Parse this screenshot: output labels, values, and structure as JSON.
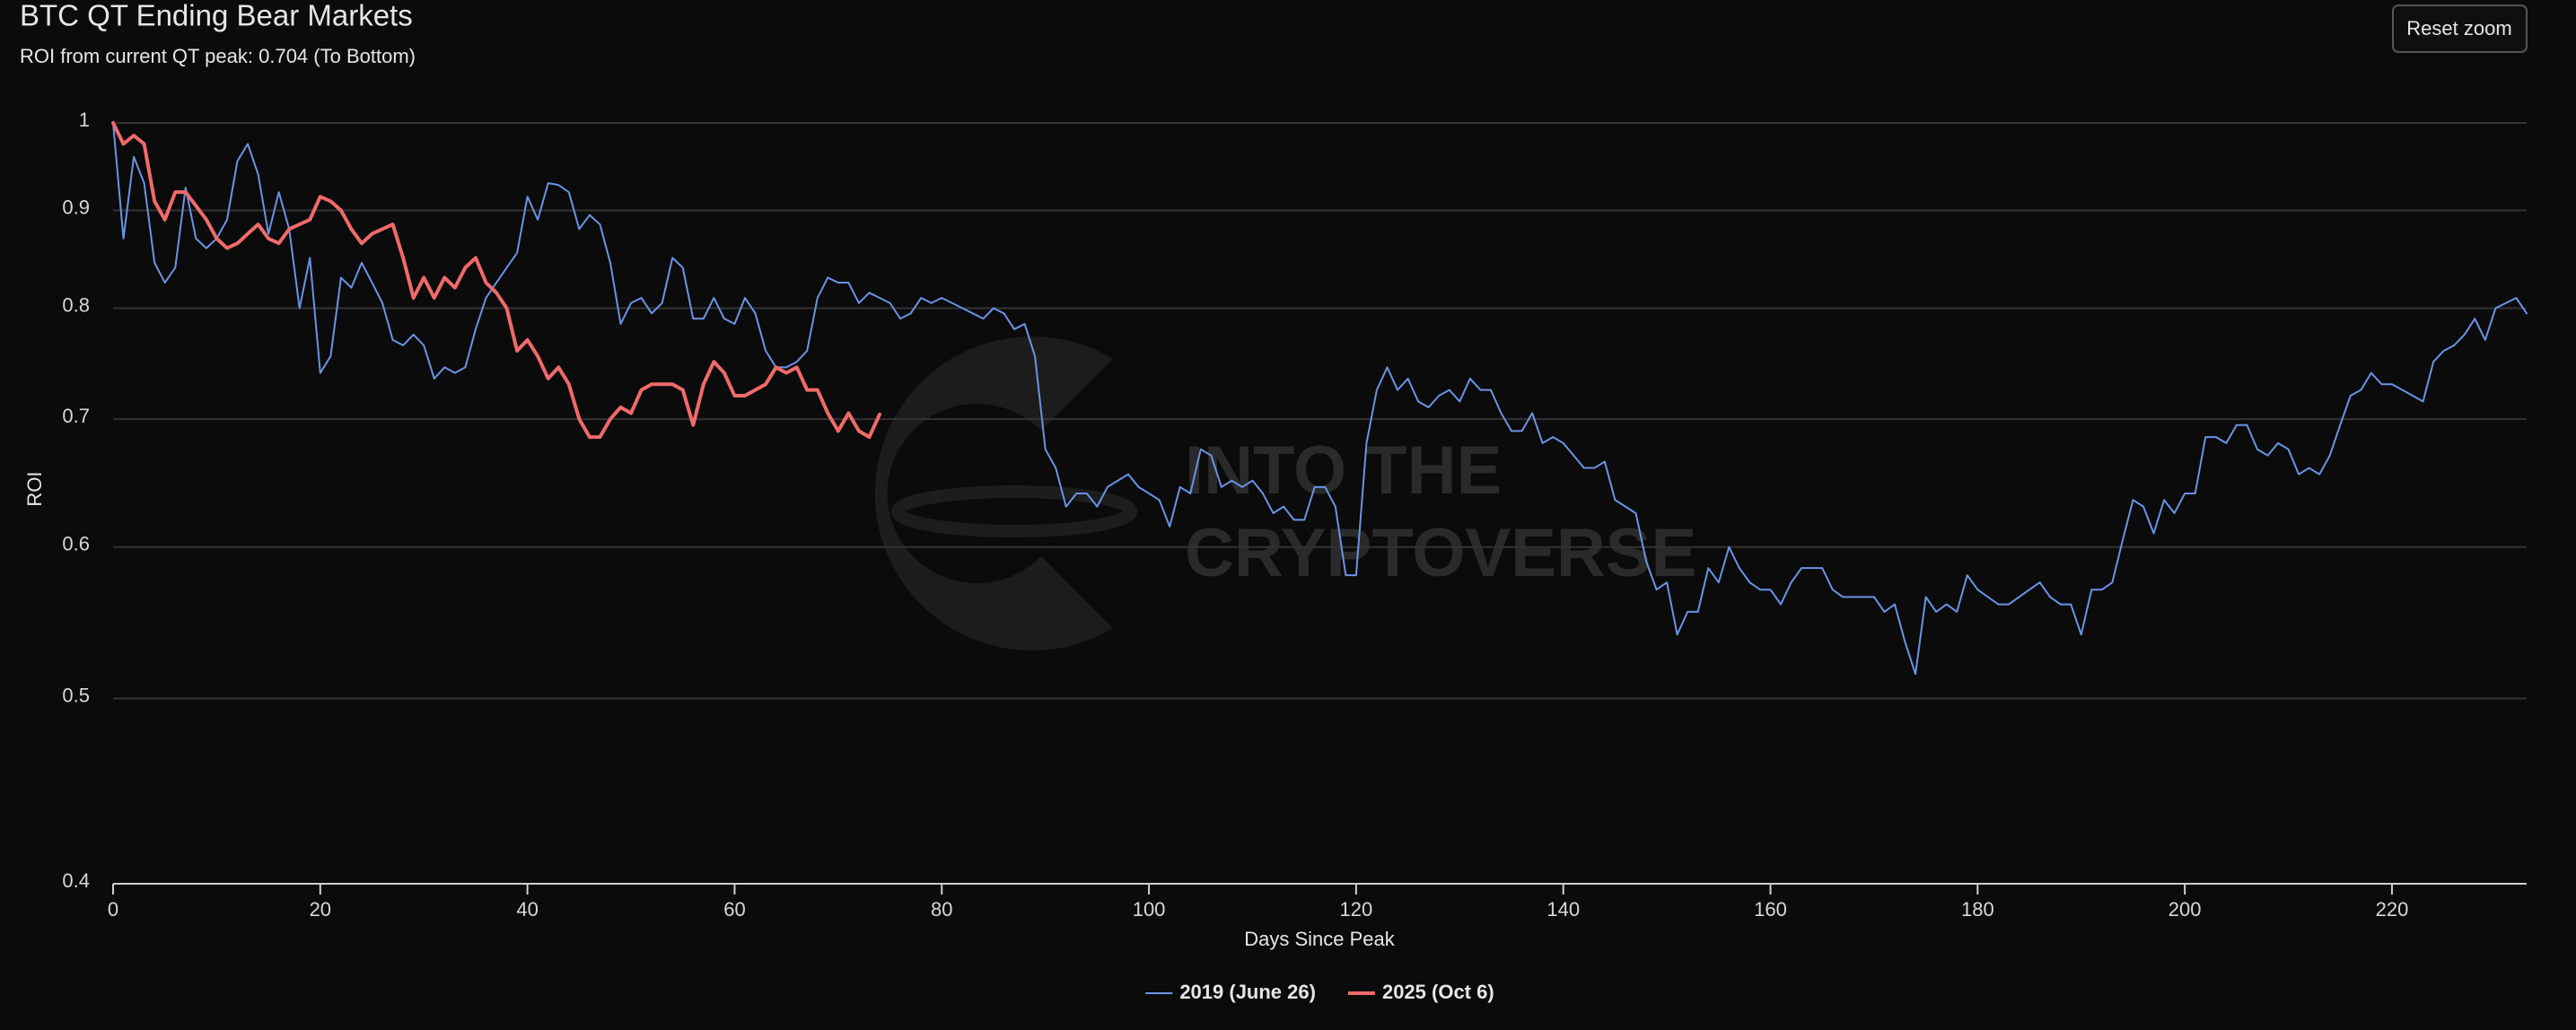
{
  "chart_data": {
    "type": "line",
    "title": "BTC QT Ending Bear Markets",
    "subtitle": "ROI from current QT peak: 0.704 (To Bottom)",
    "button": "Reset zoom",
    "watermark": [
      "INTO THE",
      "CRYPTOVERSE"
    ],
    "x_label": "Days Since Peak",
    "y_label": "ROI",
    "xlim": [
      0,
      233
    ],
    "xticks": [
      0,
      20,
      40,
      60,
      80,
      100,
      120,
      140,
      160,
      180,
      200,
      220
    ],
    "ylim": [
      0.4,
      1
    ],
    "yticks": [
      0.4,
      0.5,
      0.6,
      0.7,
      0.8,
      0.9,
      1
    ],
    "y_log": true,
    "grid": true,
    "legend": "bottom",
    "series": [
      {
        "name": "2019 (June 26)",
        "color": "#6a93e6",
        "x": [
          0,
          1,
          2,
          3,
          4,
          5,
          6,
          7,
          8,
          9,
          10,
          11,
          12,
          13,
          14,
          15,
          16,
          17,
          18,
          19,
          20,
          21,
          22,
          23,
          24,
          25,
          26,
          27,
          28,
          29,
          30,
          31,
          32,
          33,
          34,
          35,
          36,
          37,
          38,
          39,
          40,
          41,
          42,
          43,
          44,
          45,
          46,
          47,
          48,
          49,
          50,
          51,
          52,
          53,
          54,
          55,
          56,
          57,
          58,
          59,
          60,
          61,
          62,
          63,
          64,
          65,
          66,
          67,
          68,
          69,
          70,
          71,
          72,
          73,
          74,
          75,
          76,
          77,
          78,
          79,
          80,
          81,
          82,
          83,
          84,
          85,
          86,
          87,
          88,
          89,
          90,
          91,
          92,
          93,
          94,
          95,
          96,
          97,
          98,
          99,
          100,
          101,
          102,
          103,
          104,
          105,
          106,
          107,
          108,
          109,
          110,
          111,
          112,
          113,
          114,
          115,
          116,
          117,
          118,
          119,
          120,
          121,
          122,
          123,
          124,
          125,
          126,
          127,
          128,
          129,
          130,
          131,
          132,
          133,
          134,
          135,
          136,
          137,
          138,
          139,
          140,
          141,
          142,
          143,
          144,
          145,
          146,
          147,
          148,
          149,
          150,
          151,
          152,
          153,
          154,
          155,
          156,
          157,
          158,
          159,
          160,
          161,
          162,
          163,
          164,
          165,
          166,
          167,
          168,
          169,
          170,
          171,
          172,
          173,
          174,
          175,
          176,
          177,
          178,
          179,
          180,
          181,
          182,
          183,
          184,
          185,
          186,
          187,
          188,
          189,
          190,
          191,
          192,
          193,
          194,
          195,
          196,
          197,
          198,
          199,
          200,
          201,
          202,
          203,
          204,
          205,
          206,
          207,
          208,
          209,
          210,
          211,
          212,
          213,
          214,
          215,
          216,
          217,
          218,
          219,
          220,
          221,
          222,
          223,
          224,
          225,
          226,
          227,
          228,
          229,
          230,
          231,
          232,
          233
        ],
        "values": [
          1.0,
          0.87,
          0.96,
          0.93,
          0.845,
          0.825,
          0.84,
          0.925,
          0.87,
          0.86,
          0.87,
          0.89,
          0.955,
          0.975,
          0.94,
          0.875,
          0.92,
          0.88,
          0.8,
          0.85,
          0.74,
          0.755,
          0.83,
          0.82,
          0.845,
          0.825,
          0.805,
          0.77,
          0.765,
          0.775,
          0.765,
          0.735,
          0.745,
          0.74,
          0.745,
          0.78,
          0.81,
          0.825,
          0.84,
          0.855,
          0.915,
          0.89,
          0.93,
          0.928,
          0.92,
          0.88,
          0.895,
          0.885,
          0.845,
          0.785,
          0.805,
          0.81,
          0.795,
          0.805,
          0.85,
          0.84,
          0.79,
          0.79,
          0.81,
          0.79,
          0.785,
          0.81,
          0.795,
          0.76,
          0.745,
          0.745,
          0.75,
          0.76,
          0.81,
          0.83,
          0.825,
          0.825,
          0.805,
          0.815,
          0.81,
          0.805,
          0.79,
          0.795,
          0.81,
          0.805,
          0.81,
          0.805,
          0.8,
          0.795,
          0.79,
          0.8,
          0.795,
          0.78,
          0.785,
          0.755,
          0.675,
          0.66,
          0.63,
          0.64,
          0.64,
          0.63,
          0.645,
          0.65,
          0.655,
          0.645,
          0.64,
          0.635,
          0.615,
          0.645,
          0.64,
          0.675,
          0.67,
          0.645,
          0.65,
          0.645,
          0.65,
          0.64,
          0.625,
          0.63,
          0.62,
          0.62,
          0.645,
          0.645,
          0.63,
          0.58,
          0.58,
          0.68,
          0.725,
          0.745,
          0.725,
          0.735,
          0.715,
          0.71,
          0.72,
          0.725,
          0.715,
          0.735,
          0.725,
          0.725,
          0.705,
          0.69,
          0.69,
          0.705,
          0.68,
          0.685,
          0.68,
          0.67,
          0.66,
          0.66,
          0.665,
          0.635,
          0.63,
          0.625,
          0.59,
          0.57,
          0.575,
          0.54,
          0.555,
          0.555,
          0.585,
          0.575,
          0.6,
          0.585,
          0.575,
          0.57,
          0.57,
          0.56,
          0.575,
          0.585,
          0.585,
          0.585,
          0.57,
          0.565,
          0.565,
          0.565,
          0.565,
          0.555,
          0.56,
          0.535,
          0.515,
          0.565,
          0.555,
          0.56,
          0.555,
          0.58,
          0.57,
          0.565,
          0.56,
          0.56,
          0.565,
          0.57,
          0.575,
          0.565,
          0.56,
          0.56,
          0.54,
          0.57,
          0.57,
          0.575,
          0.605,
          0.635,
          0.63,
          0.61,
          0.635,
          0.625,
          0.64,
          0.64,
          0.685,
          0.685,
          0.68,
          0.695,
          0.695,
          0.675,
          0.67,
          0.68,
          0.675,
          0.655,
          0.66,
          0.655,
          0.67,
          0.695,
          0.72,
          0.725,
          0.74,
          0.73,
          0.73,
          0.725,
          0.72,
          0.715,
          0.75,
          0.76,
          0.765,
          0.775,
          0.79,
          0.77,
          0.8,
          0.805,
          0.81,
          0.795
        ]
      },
      {
        "name": "2025 (Oct 6)",
        "color": "#f06a6a",
        "x": [
          0,
          1,
          2,
          3,
          4,
          5,
          6,
          7,
          8,
          9,
          10,
          11,
          12,
          13,
          14,
          15,
          16,
          17,
          18,
          19,
          20,
          21,
          22,
          23,
          24,
          25,
          26,
          27,
          28,
          29,
          30,
          31,
          32,
          33,
          34,
          35,
          36,
          37,
          38,
          39,
          40,
          41,
          42,
          43,
          44,
          45,
          46,
          47,
          48,
          49,
          50,
          51,
          52,
          53,
          54,
          55,
          56,
          57,
          58,
          59,
          60,
          61,
          62,
          63,
          64,
          65,
          66,
          67,
          68,
          69,
          70,
          71,
          72,
          73,
          74
        ],
        "values": [
          1.0,
          0.975,
          0.985,
          0.975,
          0.91,
          0.89,
          0.92,
          0.92,
          0.905,
          0.89,
          0.87,
          0.86,
          0.865,
          0.875,
          0.885,
          0.87,
          0.865,
          0.88,
          0.885,
          0.89,
          0.915,
          0.91,
          0.9,
          0.88,
          0.865,
          0.875,
          0.88,
          0.885,
          0.85,
          0.81,
          0.83,
          0.81,
          0.83,
          0.82,
          0.84,
          0.85,
          0.825,
          0.815,
          0.8,
          0.76,
          0.77,
          0.755,
          0.735,
          0.745,
          0.73,
          0.7,
          0.685,
          0.685,
          0.7,
          0.71,
          0.705,
          0.725,
          0.73,
          0.73,
          0.73,
          0.725,
          0.695,
          0.73,
          0.75,
          0.74,
          0.72,
          0.72,
          0.725,
          0.73,
          0.745,
          0.74,
          0.745,
          0.725,
          0.725,
          0.705,
          0.69,
          0.705,
          0.69,
          0.685,
          0.704
        ]
      }
    ]
  }
}
